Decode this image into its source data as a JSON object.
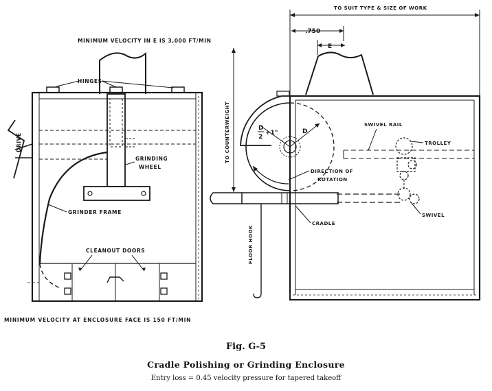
{
  "labels": {
    "min_velocity_e": "MINIMUM VELOCITY IN E IS 3,000 FT/MIN",
    "hinges": "HINGES",
    "grinding": "GRINDING",
    "wheel": "WHEEL",
    "drive": "DRIVE",
    "grinder_frame": "GRINDER FRAME",
    "cleanout_doors": "CLEANOUT DOORS",
    "min_velocity_face": "MINIMUM VELOCITY AT ENCLOSURE FACE IS 150 FT/MIN",
    "to_suit": "TO SUIT TYPE & SIZE OF WORK",
    "dim_750": ".750",
    "dim_e": "E",
    "to_counterweight": "TO COUNTERWEIGHT",
    "d_over_2_num": "D",
    "d_over_2_den": "2",
    "plus_one": "+1\"",
    "d": "D",
    "direction_of": "DIRECTION OF",
    "rotation": "ROTATION",
    "swivel_rail": "SWIVEL RAIL",
    "trolley": "TROLLEY",
    "floor_hook": "FLOOR HOOK",
    "cradle": "CRADLE",
    "swivel": "SWIVEL"
  },
  "caption": {
    "figure": "Fig. G-5",
    "title": "Cradle Polishing or Grinding Enclosure",
    "subtitle": "Entry loss = 0.45 velocity pressure for tapered takeoff"
  }
}
